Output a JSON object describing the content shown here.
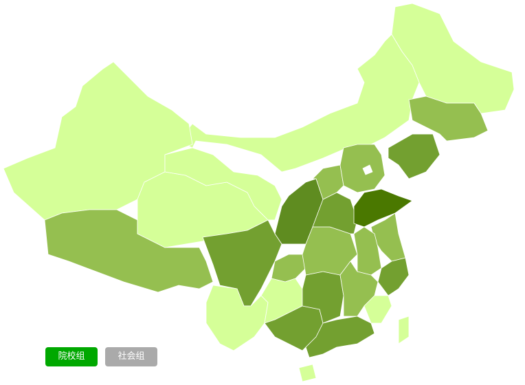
{
  "buttons": [
    "院校组",
    "社会组"
  ]
}
